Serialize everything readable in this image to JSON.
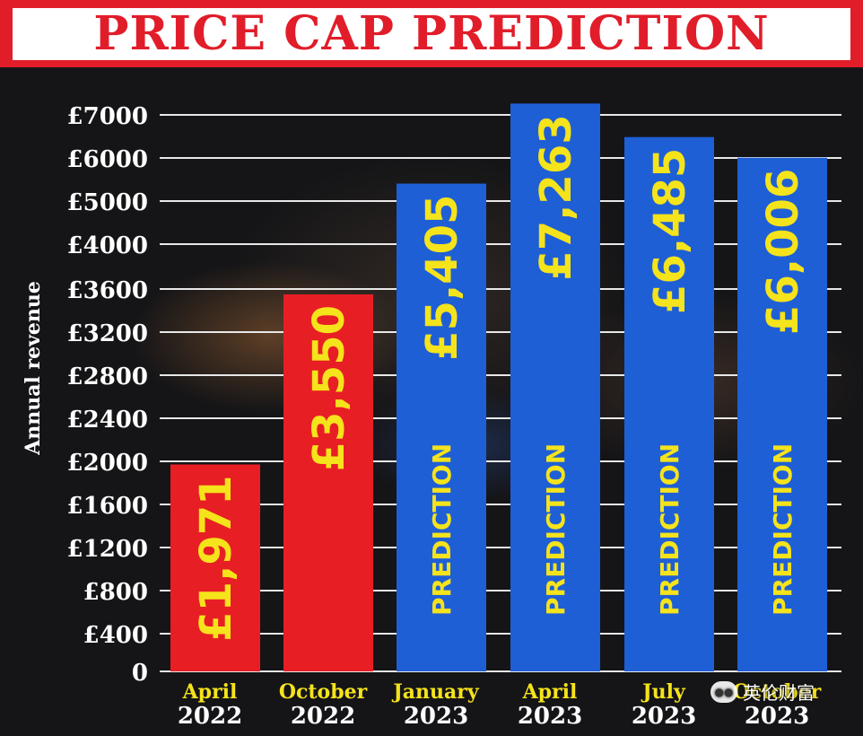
{
  "banner": {
    "title": "PRICE CAP PREDICTION"
  },
  "chart_data": {
    "type": "bar",
    "title": "PRICE CAP PREDICTION",
    "ylabel": "Annual revenue",
    "xlabel": "",
    "y_ticks": [
      "0",
      "£400",
      "£800",
      "£1200",
      "£1600",
      "£2000",
      "£2400",
      "£2800",
      "£3200",
      "£3600",
      "£4000",
      "£5000",
      "£6000",
      "£7000"
    ],
    "categories": [
      {
        "month": "April",
        "year": "2022"
      },
      {
        "month": "October",
        "year": "2022"
      },
      {
        "month": "January",
        "year": "2023"
      },
      {
        "month": "April",
        "year": "2023"
      },
      {
        "month": "July",
        "year": "2023"
      },
      {
        "month": "October",
        "year": "2023"
      }
    ],
    "values": [
      1971,
      3550,
      5405,
      7263,
      6485,
      6006
    ],
    "value_labels": [
      "£1,971",
      "£3,550",
      "£5,405",
      "£7,263",
      "£6,485",
      "£6,006"
    ],
    "prediction": [
      false,
      false,
      true,
      true,
      true,
      true
    ],
    "prediction_label": "PREDICTION",
    "colors": {
      "actual": "#e81e25",
      "prediction": "#1f5fd6",
      "label": "#f5e31b",
      "banner": "#e11d2a"
    },
    "grid": true
  },
  "watermark": {
    "text": "英伦财富",
    "icon": "wechat-icon"
  }
}
